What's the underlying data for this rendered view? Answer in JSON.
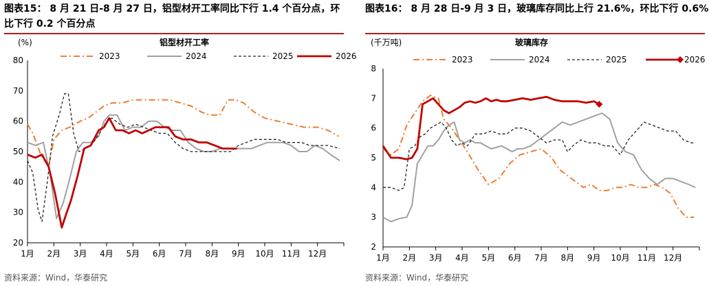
{
  "figures": [
    {
      "heading": "图表15： 8 月 21 日-8 月 27 日，铝型材开工率同比下行 1.4 个百分点，环比下行 0.2 个百分点",
      "source": "资料来源：Wind，华泰研究"
    },
    {
      "heading": "图表16： 8 月 28 日-9 月 3 日，玻璃库存同比上行 21.6%，环比下行 0.6%",
      "source": "资料来源：Wind，华泰研究"
    }
  ],
  "chart_data": [
    {
      "type": "line",
      "title": "铝型材开工率",
      "ylabel": "(%)",
      "ylim": [
        20,
        80
      ],
      "yticks": [
        20,
        30,
        40,
        50,
        60,
        70,
        80
      ],
      "xlim": [
        1,
        13
      ],
      "xticks": [
        "1月",
        "2月",
        "3月",
        "4月",
        "5月",
        "6月",
        "7月",
        "8月",
        "9月",
        "10月",
        "11月",
        "12月"
      ],
      "legend_position": "top",
      "series": [
        {
          "name": "2023",
          "color": "#ed7d31",
          "style": "dashdot",
          "x": [
            1.0,
            1.2,
            1.5,
            1.8,
            2.0,
            2.3,
            2.6,
            2.8,
            3.0,
            3.3,
            3.6,
            3.9,
            4.2,
            4.6,
            5.0,
            5.4,
            5.8,
            6.1,
            6.4,
            6.8,
            7.2,
            7.6,
            7.9,
            8.1,
            8.3,
            8.6,
            8.9,
            9.2,
            9.6,
            10.0,
            10.5,
            11.0,
            11.5,
            12.0,
            12.4,
            12.8
          ],
          "y": [
            59,
            56,
            49,
            45,
            54,
            57,
            58,
            59,
            60,
            61,
            63,
            65,
            66,
            66,
            67,
            67,
            67,
            67,
            67,
            66,
            65,
            63,
            62,
            62,
            62,
            67,
            67,
            66,
            63,
            61,
            60,
            59,
            58,
            58,
            57,
            55
          ]
        },
        {
          "name": "2024",
          "color": "#a0a0a0",
          "style": "solid",
          "x": [
            1.0,
            1.3,
            1.6,
            1.85,
            2.1,
            2.35,
            2.6,
            2.85,
            3.1,
            3.4,
            3.7,
            3.9,
            4.1,
            4.4,
            4.7,
            5.0,
            5.3,
            5.6,
            5.9,
            6.2,
            6.5,
            6.8,
            7.1,
            7.4,
            7.7,
            8.0,
            8.3,
            8.6,
            8.9,
            9.2,
            9.5,
            9.8,
            10.1,
            10.4,
            10.7,
            11.0,
            11.3,
            11.6,
            11.9,
            12.2,
            12.5,
            12.85
          ],
          "y": [
            53,
            52,
            53,
            43,
            28,
            33,
            41,
            50,
            53,
            53,
            55,
            60,
            62,
            62,
            57,
            58,
            58,
            60,
            60,
            58,
            57,
            57,
            53,
            51,
            50,
            50,
            51,
            51,
            51,
            51,
            51,
            52,
            53,
            53,
            53,
            52,
            50,
            50,
            52,
            51,
            49,
            47
          ]
        },
        {
          "name": "2025",
          "color": "#222222",
          "style": "dashed",
          "x": [
            1.0,
            1.2,
            1.4,
            1.55,
            1.75,
            1.95,
            2.2,
            2.4,
            2.55,
            2.75,
            2.95,
            3.2,
            3.5,
            3.8,
            4.0,
            4.2,
            4.5,
            4.8,
            5.1,
            5.4,
            5.7,
            6.0,
            6.3,
            6.6,
            6.9,
            7.2,
            7.5,
            7.8,
            8.1,
            8.4,
            8.7,
            9.0,
            9.3,
            9.6,
            9.9,
            10.2,
            10.5,
            10.8,
            11.1,
            11.4,
            11.7,
            12.0,
            12.4,
            12.85
          ],
          "y": [
            47,
            43,
            31,
            27,
            40,
            55,
            62,
            69,
            69,
            56,
            50,
            51,
            53,
            57,
            60,
            61,
            59,
            58,
            59,
            58,
            57,
            56,
            56,
            53,
            51,
            50,
            50,
            50,
            50,
            50,
            50,
            52,
            53,
            54,
            54,
            54,
            54,
            53,
            53,
            53,
            52,
            52,
            52,
            51
          ]
        },
        {
          "name": "2026",
          "color": "#c00000",
          "style": "solid-thick",
          "x": [
            1.0,
            1.3,
            1.55,
            1.8,
            2.05,
            2.3,
            2.45,
            2.65,
            2.9,
            3.15,
            3.4,
            3.7,
            3.9,
            4.1,
            4.35,
            4.6,
            4.85,
            5.1,
            5.35,
            5.6,
            5.85,
            6.1,
            6.35,
            6.6,
            6.9,
            7.2,
            7.5,
            7.8,
            8.1,
            8.4,
            8.7,
            8.95
          ],
          "y": [
            49,
            48,
            49,
            45,
            36,
            25,
            29,
            34,
            42,
            51,
            52,
            57,
            58,
            61,
            57,
            57,
            56,
            57,
            56,
            57,
            58,
            58,
            58,
            55,
            54,
            54,
            53,
            53,
            52,
            51,
            51,
            51
          ]
        }
      ]
    },
    {
      "type": "line",
      "title": "玻璃库存",
      "ylabel": "(千万吨)",
      "ylim": [
        2,
        8
      ],
      "yticks": [
        2,
        3,
        4,
        5,
        6,
        7,
        8
      ],
      "xlim": [
        1,
        13
      ],
      "xticks": [
        "1月",
        "2月",
        "3月",
        "4月",
        "5月",
        "6月",
        "7月",
        "8月",
        "9月",
        "10月",
        "11月",
        "12月"
      ],
      "legend_position": "top",
      "series": [
        {
          "name": "2023",
          "color": "#ed7d31",
          "style": "dashdot",
          "x": [
            1.0,
            1.3,
            1.6,
            1.9,
            2.2,
            2.5,
            2.8,
            3.1,
            3.3,
            3.6,
            3.9,
            4.2,
            4.6,
            5.0,
            5.4,
            5.8,
            6.2,
            6.6,
            7.0,
            7.4,
            7.7,
            8.0,
            8.3,
            8.6,
            8.9,
            9.2,
            9.5,
            9.8,
            10.1,
            10.4,
            10.7,
            11.0,
            11.3,
            11.6,
            11.9,
            12.2,
            12.5,
            12.8
          ],
          "y": [
            5.3,
            5.1,
            5.3,
            6.1,
            6.5,
            6.9,
            7.1,
            7.0,
            6.3,
            6.0,
            5.6,
            5.2,
            4.6,
            4.1,
            4.3,
            4.8,
            5.1,
            5.2,
            5.3,
            5.0,
            4.6,
            4.4,
            4.2,
            4.0,
            4.1,
            3.9,
            3.9,
            4.0,
            4.0,
            4.1,
            4.0,
            4.0,
            4.1,
            4.0,
            3.8,
            3.3,
            3.0,
            3.0
          ]
        },
        {
          "name": "2024",
          "color": "#a0a0a0",
          "style": "solid",
          "x": [
            1.0,
            1.3,
            1.6,
            1.9,
            2.1,
            2.3,
            2.5,
            2.7,
            2.9,
            3.1,
            3.3,
            3.5,
            3.7,
            3.9,
            4.1,
            4.3,
            4.5,
            4.7,
            4.9,
            5.1,
            5.3,
            5.5,
            5.7,
            5.9,
            6.1,
            6.3,
            6.6,
            6.9,
            7.2,
            7.5,
            7.8,
            8.1,
            8.4,
            8.7,
            9.0,
            9.3,
            9.6,
            9.9,
            10.2,
            10.5,
            10.8,
            11.1,
            11.4,
            11.7,
            12.0,
            12.3,
            12.6,
            12.85
          ],
          "y": [
            3.0,
            2.85,
            2.95,
            3.0,
            3.4,
            4.8,
            5.1,
            5.4,
            5.4,
            5.6,
            5.9,
            6.1,
            6.2,
            5.6,
            5.5,
            5.6,
            5.5,
            5.5,
            5.4,
            5.3,
            5.35,
            5.4,
            5.3,
            5.2,
            5.3,
            5.3,
            5.4,
            5.6,
            5.8,
            6.0,
            6.2,
            6.1,
            6.2,
            6.3,
            6.4,
            6.5,
            6.3,
            5.5,
            5.2,
            5.1,
            4.6,
            4.3,
            4.1,
            4.3,
            4.3,
            4.2,
            4.1,
            4.0
          ]
        },
        {
          "name": "2025",
          "color": "#222222",
          "style": "dashed",
          "x": [
            1.0,
            1.3,
            1.6,
            1.8,
            2.0,
            2.2,
            2.4,
            2.6,
            2.8,
            3.0,
            3.2,
            3.4,
            3.6,
            3.8,
            4.0,
            4.2,
            4.5,
            4.8,
            5.1,
            5.4,
            5.7,
            6.0,
            6.3,
            6.6,
            6.9,
            7.2,
            7.5,
            7.8,
            8.0,
            8.2,
            8.5,
            8.8,
            9.1,
            9.4,
            9.7,
            10.0,
            10.3,
            10.6,
            10.9,
            11.2,
            11.5,
            11.8,
            12.1,
            12.4,
            12.7,
            12.85
          ],
          "y": [
            4.0,
            4.0,
            3.9,
            4.0,
            5.3,
            5.4,
            5.7,
            5.8,
            6.0,
            6.1,
            6.2,
            6.0,
            5.6,
            5.4,
            5.5,
            5.4,
            5.8,
            5.8,
            5.9,
            5.8,
            5.8,
            6.0,
            6.0,
            5.9,
            5.7,
            5.5,
            5.6,
            5.6,
            5.2,
            5.4,
            5.6,
            5.5,
            5.5,
            5.4,
            5.4,
            5.1,
            5.6,
            5.9,
            6.2,
            6.1,
            6.0,
            5.9,
            5.9,
            5.6,
            5.5,
            5.5
          ]
        },
        {
          "name": "2026",
          "color": "#c00000",
          "style": "solid-thick-diamond-end",
          "x": [
            1.0,
            1.3,
            1.6,
            1.9,
            2.1,
            2.3,
            2.5,
            2.7,
            2.9,
            3.1,
            3.3,
            3.5,
            3.7,
            3.9,
            4.1,
            4.3,
            4.5,
            4.7,
            4.9,
            5.1,
            5.3,
            5.5,
            5.7,
            6.0,
            6.3,
            6.6,
            6.9,
            7.2,
            7.5,
            7.8,
            8.1,
            8.4,
            8.7,
            9.0,
            9.2
          ],
          "y": [
            5.4,
            5.0,
            5.0,
            4.95,
            5.0,
            5.3,
            6.8,
            6.9,
            7.0,
            6.8,
            6.6,
            6.5,
            6.6,
            6.7,
            6.85,
            6.9,
            6.85,
            6.9,
            7.0,
            6.9,
            6.95,
            6.9,
            6.9,
            6.95,
            7.0,
            6.95,
            7.0,
            7.05,
            6.95,
            6.9,
            6.9,
            6.9,
            6.85,
            6.9,
            6.8
          ]
        }
      ]
    }
  ]
}
